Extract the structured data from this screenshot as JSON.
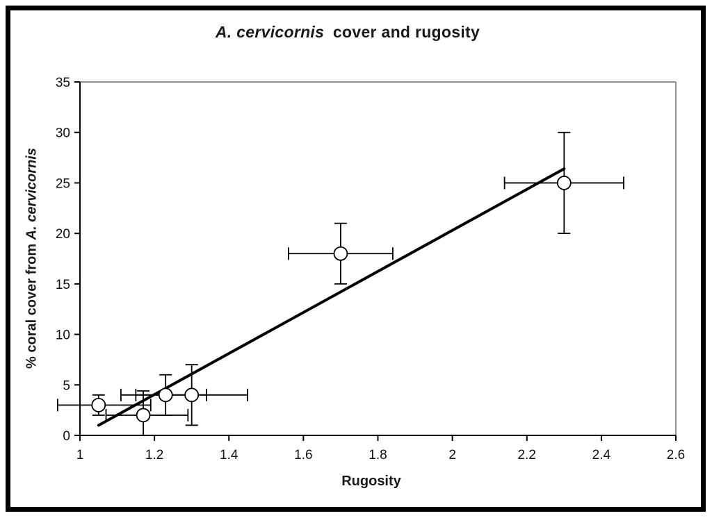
{
  "page": {
    "background": "#ffffff",
    "frame_color": "#000000"
  },
  "colors": {
    "axis": "#000000",
    "plot_border": "#909090",
    "text": "#111111",
    "marker_fill": "#ffffff",
    "marker_stroke": "#000000",
    "trend_line": "#000000",
    "error_bar": "#000000"
  },
  "chart_data": {
    "type": "scatter",
    "title": {
      "italic": "A. cervicornis",
      "rest": " cover and rugosity"
    },
    "xlabel": "Rugosity",
    "ylabel": {
      "prefix": "% coral cover from ",
      "italic": "A. cervicornis"
    },
    "xlim": [
      1,
      2.6
    ],
    "ylim": [
      0,
      35
    ],
    "xticks": [
      1,
      1.2,
      1.4,
      1.6,
      1.8,
      2,
      2.2,
      2.4,
      2.6
    ],
    "xtick_labels": [
      "1",
      "1.2",
      "1.4",
      "1.6",
      "1.8",
      "2",
      "2.2",
      "2.4",
      "2.6"
    ],
    "yticks": [
      0,
      5,
      10,
      15,
      20,
      25,
      30,
      35
    ],
    "ytick_labels": [
      "0",
      "5",
      "10",
      "15",
      "20",
      "25",
      "30",
      "35"
    ],
    "grid": false,
    "legend": false,
    "marker": "open-circle",
    "points": [
      {
        "x": 1.05,
        "y": 3,
        "x_lo": 0.94,
        "x_hi": 1.19,
        "y_lo": 2,
        "y_hi": 4
      },
      {
        "x": 1.17,
        "y": 2,
        "x_lo": 1.07,
        "x_hi": 1.29,
        "y_lo": 0,
        "y_hi": 4.4
      },
      {
        "x": 1.23,
        "y": 4,
        "x_lo": 1.11,
        "x_hi": 1.34,
        "y_lo": 2,
        "y_hi": 6
      },
      {
        "x": 1.3,
        "y": 4,
        "x_lo": 1.15,
        "x_hi": 1.45,
        "y_lo": 1,
        "y_hi": 7
      },
      {
        "x": 1.7,
        "y": 18,
        "x_lo": 1.56,
        "x_hi": 1.84,
        "y_lo": 15,
        "y_hi": 21
      },
      {
        "x": 2.3,
        "y": 25,
        "x_lo": 2.14,
        "x_hi": 2.46,
        "y_lo": 20,
        "y_hi": 30
      }
    ],
    "trendline": {
      "x1": 1.05,
      "y1": 1.0,
      "x2": 2.3,
      "y2": 26.4
    }
  }
}
